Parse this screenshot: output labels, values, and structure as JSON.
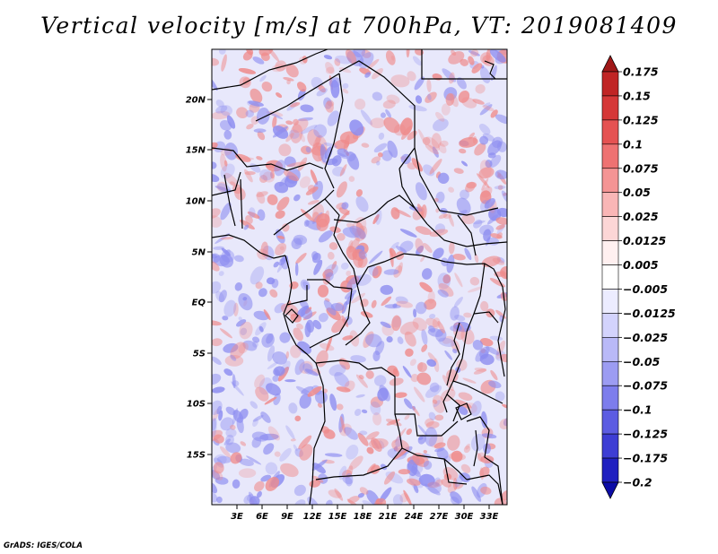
{
  "title": "Vertical velocity [m/s] at 700hPa, VT: 2019081409",
  "footer": "GrADS: IGES/COLA",
  "map": {
    "lat_labels": [
      "20N",
      "15N",
      "10N",
      "5N",
      "EQ",
      "5S",
      "10S",
      "15S"
    ],
    "lon_labels": [
      "3E",
      "6E",
      "9E",
      "12E",
      "15E",
      "18E",
      "21E",
      "24E",
      "27E",
      "30E",
      "33E"
    ],
    "field_colors": {
      "land_background": "#e8e8fb",
      "upward": "#ef8a8a",
      "downward": "#8c8cf0",
      "border": "#000000"
    }
  },
  "colorbar": {
    "labels": [
      "0.175",
      "0.15",
      "0.125",
      "0.1",
      "0.075",
      "0.05",
      "0.025",
      "0.0125",
      "0.005",
      "−0.005",
      "−0.0125",
      "−0.025",
      "−0.05",
      "−0.075",
      "−0.1",
      "−0.125",
      "−0.175",
      "−0.2"
    ],
    "colors": [
      "#a01818",
      "#c02525",
      "#d53838",
      "#e55252",
      "#ee7272",
      "#f49494",
      "#f9b6b6",
      "#fcd6d6",
      "#fff0f0",
      "#ffffff",
      "#ececff",
      "#d3d3fc",
      "#b9b9f7",
      "#9c9cf2",
      "#7d7dec",
      "#5c5ce2",
      "#3d3dd4",
      "#2020c0",
      "#0c0ca6"
    ]
  }
}
